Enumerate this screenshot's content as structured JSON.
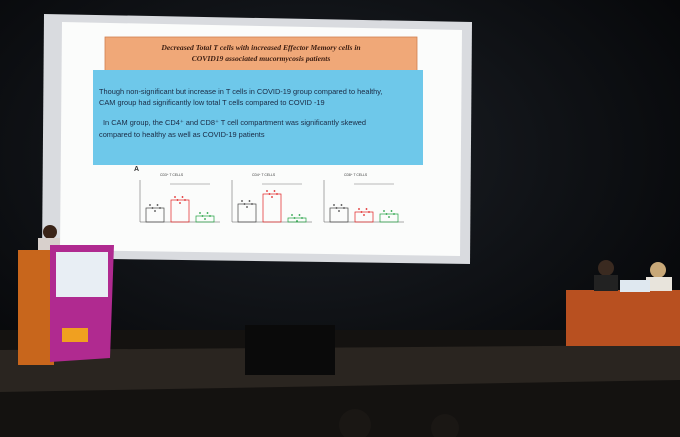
{
  "slide": {
    "title_lines": [
      "Decreased Total T cells with increased Effector Memory cells in",
      "COVID19 associated mucormycosis  patients"
    ],
    "paragraphs": [
      [
        "Though non-significant but increase in T cells in COVID-19 group compared to healthy,",
        "CAM group had significantly low total T cells compared to COVID -19"
      ],
      [
        "In  CAM  group,  the  CD4⁺  and  CD8⁺  T  cell  compartment  was  significantly  skewed",
        "compared to healthy as well as COVID-19 patients"
      ]
    ],
    "panel_label": "A",
    "chart_titles": [
      "CD3⁺ T CELLS",
      "CD4⁺ T CELLS",
      "CD8⁺ T CELLS"
    ]
  }
}
